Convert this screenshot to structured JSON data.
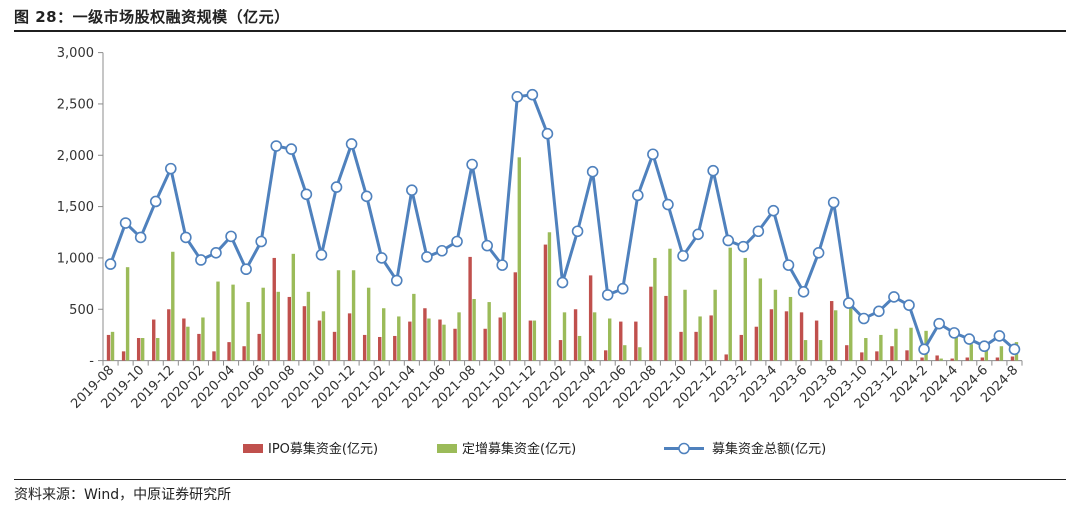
{
  "title": "图 28：一级市场股权融资规模（亿元）",
  "source": "资料来源：Wind，中原证券研究所",
  "colors": {
    "ipo": "#c0504d",
    "placement": "#9bbb59",
    "total": "#4f81bd"
  },
  "chart_data": {
    "type": "bar+line",
    "ylim": [
      0,
      3000
    ],
    "yticks": [
      0,
      500,
      1000,
      1500,
      2000,
      2500,
      3000
    ],
    "ytick_labels": [
      "-",
      "500",
      "1,000",
      "1,500",
      "2,000",
      "2,500",
      "3,000"
    ],
    "grid": false,
    "legend_position": "bottom",
    "x": [
      "2019-08",
      "2019-09",
      "2019-10",
      "2019-11",
      "2019-12",
      "2020-01",
      "2020-02",
      "2020-03",
      "2020-04",
      "2020-05",
      "2020-06",
      "2020-07",
      "2020-08",
      "2020-09",
      "2020-10",
      "2020-11",
      "2020-12",
      "2021-01",
      "2021-02",
      "2021-03",
      "2021-04",
      "2021-05",
      "2021-06",
      "2021-07",
      "2021-08",
      "2021-09",
      "2021-10",
      "2021-11",
      "2021-12",
      "2022-01",
      "2022-02",
      "2022-03",
      "2022-04",
      "2022-05",
      "2022-06",
      "2022-07",
      "2022-08",
      "2022-09",
      "2022-10",
      "2022-11",
      "2022-12",
      "2023-1",
      "2023-2",
      "2023-3",
      "2023-4",
      "2023-5",
      "2023-6",
      "2023-7",
      "2023-8",
      "2023-9",
      "2023-10",
      "2023-11",
      "2023-12",
      "2024-1",
      "2024-2",
      "2024-3",
      "2024-4",
      "2024-5",
      "2024-6",
      "2024-7",
      "2024-8"
    ],
    "x_tick_labels": [
      "2019-08",
      "2019-10",
      "2019-12",
      "2020-02",
      "2020-04",
      "2020-06",
      "2020-08",
      "2020-10",
      "2020-12",
      "2021-02",
      "2021-04",
      "2021-06",
      "2021-08",
      "2021-10",
      "2021-12",
      "2022-02",
      "2022-04",
      "2022-06",
      "2022-08",
      "2022-10",
      "2022-12",
      "2023-2",
      "2023-4",
      "2023-6",
      "2023-8",
      "2023-10",
      "2023-12",
      "2024-2",
      "2024-4",
      "2024-6",
      "2024-8"
    ],
    "series": [
      {
        "name": "IPO募集资金(亿元)",
        "type": "bar",
        "values": [
          250,
          90,
          220,
          400,
          500,
          410,
          260,
          90,
          180,
          140,
          260,
          1000,
          620,
          530,
          390,
          280,
          460,
          250,
          230,
          240,
          380,
          510,
          400,
          310,
          1010,
          310,
          420,
          860,
          390,
          1130,
          200,
          500,
          830,
          100,
          380,
          380,
          720,
          630,
          280,
          280,
          440,
          60,
          250,
          330,
          500,
          480,
          470,
          390,
          580,
          150,
          80,
          90,
          140,
          100,
          30,
          50,
          20,
          30,
          30,
          30,
          40
        ]
      },
      {
        "name": "定增募集资金(亿元)",
        "type": "bar",
        "values": [
          280,
          910,
          220,
          220,
          1060,
          330,
          420,
          770,
          740,
          570,
          710,
          670,
          1040,
          670,
          480,
          880,
          880,
          710,
          510,
          430,
          650,
          410,
          350,
          470,
          600,
          570,
          470,
          1980,
          390,
          1250,
          470,
          240,
          470,
          410,
          150,
          130,
          1000,
          1090,
          690,
          430,
          690,
          1100,
          1000,
          800,
          690,
          620,
          200,
          200,
          490,
          570,
          220,
          250,
          310,
          320,
          290,
          20,
          240,
          160,
          180,
          140,
          180
        ]
      },
      {
        "name": "募集资金总额(亿元)",
        "type": "line",
        "values": [
          940,
          1340,
          1200,
          1550,
          1870,
          1200,
          980,
          1050,
          1210,
          890,
          1160,
          2090,
          2060,
          1620,
          1030,
          1690,
          2110,
          1600,
          1000,
          780,
          1660,
          1010,
          1070,
          1160,
          1910,
          1120,
          930,
          2570,
          2590,
          2210,
          760,
          1260,
          1840,
          640,
          700,
          1610,
          2010,
          1520,
          1020,
          1230,
          1850,
          1170,
          1110,
          1260,
          1460,
          930,
          670,
          1050,
          1540,
          560,
          410,
          480,
          620,
          540,
          110,
          360,
          270,
          210,
          140,
          240,
          110
        ]
      }
    ]
  }
}
